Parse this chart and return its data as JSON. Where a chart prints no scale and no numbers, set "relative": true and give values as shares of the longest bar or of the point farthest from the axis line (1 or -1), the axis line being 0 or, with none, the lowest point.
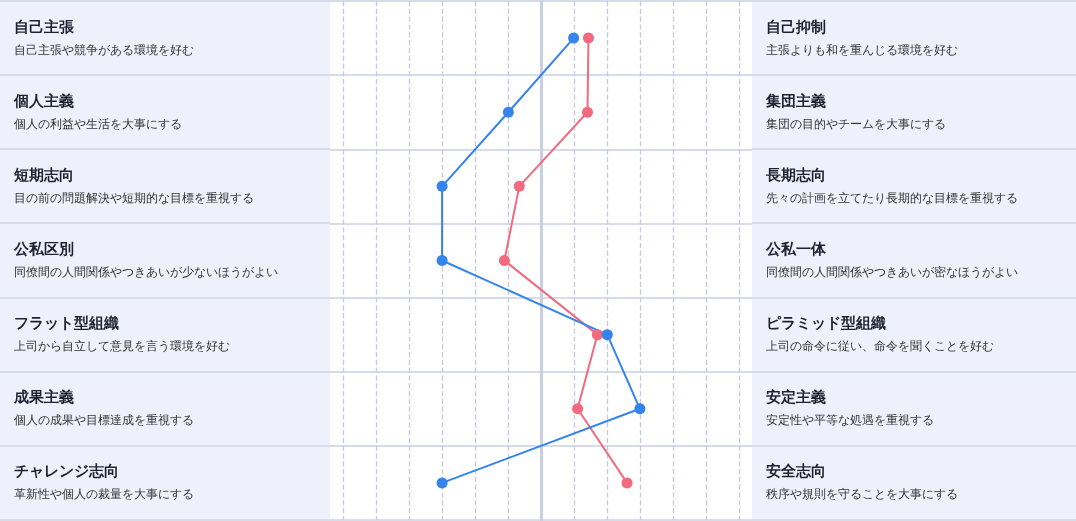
{
  "chart_data": {
    "type": "line",
    "orientation": "horizontal",
    "relative": true,
    "grid": "x",
    "marker": "circle",
    "line_style": "solid",
    "categories": [
      "自己主張",
      "個人主義",
      "短期志向",
      "公私区別",
      "フラット型組織",
      "成果主義",
      "チャレンジ志向"
    ],
    "y2_categories": [
      "自己抑制",
      "集団主義",
      "長期志向",
      "公私一体",
      "ピラミッド型組織",
      "安定主義",
      "安全志向"
    ],
    "annotations": [
      "自己主張や競争がある環境を好む",
      "個人の利益や生活を大事にする",
      "目の前の問題解決や短期的な目標を重視する",
      "同僚間の人間関係やつきあいが少ないほうがよい",
      "上司から自立して意見を言う環境を好む",
      "個人の成果や目標達成を重視する",
      "革新性や個人の裁量を大事にする",
      "主張よりも和を重んじる環境を好む",
      "集団の目的やチームを大事にする",
      "先々の計画を立てたり長期的な目標を重視する",
      "同僚間の人間関係やつきあいが密なほうがよい",
      "上司の命令に従い、命令を聞くことを好む",
      "安定性や平等な処遇を重視する",
      "秩序や規則を守ることを大事にする"
    ],
    "series": [
      {
        "color": "#f06b7e",
        "values": [
          0.48,
          0.47,
          -0.22,
          -0.37,
          0.57,
          0.37,
          0.87
        ]
      },
      {
        "color": "#3584ee",
        "values": [
          0.33,
          -0.33,
          -1,
          -1,
          0.67,
          1,
          -1
        ]
      }
    ]
  }
}
